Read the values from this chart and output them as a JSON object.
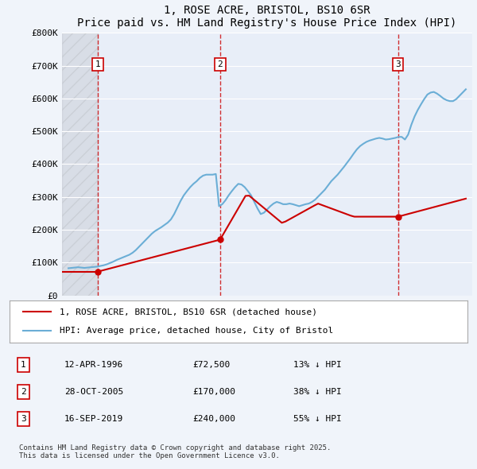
{
  "title": "1, ROSE ACRE, BRISTOL, BS10 6SR",
  "subtitle": "Price paid vs. HM Land Registry's House Price Index (HPI)",
  "ylabel": "",
  "xlabel": "",
  "ylim": [
    0,
    800000
  ],
  "yticks": [
    0,
    100000,
    200000,
    300000,
    400000,
    500000,
    600000,
    700000,
    800000
  ],
  "ytick_labels": [
    "£0",
    "£100K",
    "£200K",
    "£300K",
    "£400K",
    "£500K",
    "£600K",
    "£700K",
    "£800K"
  ],
  "background_color": "#f0f4fa",
  "plot_bg_color": "#e8eef8",
  "grid_color": "#ffffff",
  "hpi_color": "#6baed6",
  "price_color": "#cc0000",
  "sale_points": [
    {
      "year": 1996.28,
      "price": 72500,
      "label": "1"
    },
    {
      "year": 2005.83,
      "price": 170000,
      "label": "2"
    },
    {
      "year": 2019.71,
      "price": 240000,
      "label": "3"
    }
  ],
  "transactions": [
    {
      "num": "1",
      "date": "12-APR-1996",
      "price": "£72,500",
      "hpi": "13% ↓ HPI"
    },
    {
      "num": "2",
      "date": "28-OCT-2005",
      "price": "£170,000",
      "hpi": "38% ↓ HPI"
    },
    {
      "num": "3",
      "date": "16-SEP-2019",
      "price": "£240,000",
      "hpi": "55% ↓ HPI"
    }
  ],
  "legend_line1": "1, ROSE ACRE, BRISTOL, BS10 6SR (detached house)",
  "legend_line2": "HPI: Average price, detached house, City of Bristol",
  "footer": "Contains HM Land Registry data © Crown copyright and database right 2025.\nThis data is licensed under the Open Government Licence v3.0.",
  "hpi_data": {
    "years": [
      1994.0,
      1994.25,
      1994.5,
      1994.75,
      1995.0,
      1995.25,
      1995.5,
      1995.75,
      1996.0,
      1996.25,
      1996.5,
      1996.75,
      1997.0,
      1997.25,
      1997.5,
      1997.75,
      1998.0,
      1998.25,
      1998.5,
      1998.75,
      1999.0,
      1999.25,
      1999.5,
      1999.75,
      2000.0,
      2000.25,
      2000.5,
      2000.75,
      2001.0,
      2001.25,
      2001.5,
      2001.75,
      2002.0,
      2002.25,
      2002.5,
      2002.75,
      2003.0,
      2003.25,
      2003.5,
      2003.75,
      2004.0,
      2004.25,
      2004.5,
      2004.75,
      2005.0,
      2005.25,
      2005.5,
      2005.75,
      2006.0,
      2006.25,
      2006.5,
      2006.75,
      2007.0,
      2007.25,
      2007.5,
      2007.75,
      2008.0,
      2008.25,
      2008.5,
      2008.75,
      2009.0,
      2009.25,
      2009.5,
      2009.75,
      2010.0,
      2010.25,
      2010.5,
      2010.75,
      2011.0,
      2011.25,
      2011.5,
      2011.75,
      2012.0,
      2012.25,
      2012.5,
      2012.75,
      2013.0,
      2013.25,
      2013.5,
      2013.75,
      2014.0,
      2014.25,
      2014.5,
      2014.75,
      2015.0,
      2015.25,
      2015.5,
      2015.75,
      2016.0,
      2016.25,
      2016.5,
      2016.75,
      2017.0,
      2017.25,
      2017.5,
      2017.75,
      2018.0,
      2018.25,
      2018.5,
      2018.75,
      2019.0,
      2019.25,
      2019.5,
      2019.75,
      2020.0,
      2020.25,
      2020.5,
      2020.75,
      2021.0,
      2021.25,
      2021.5,
      2021.75,
      2022.0,
      2022.25,
      2022.5,
      2022.75,
      2023.0,
      2023.25,
      2023.5,
      2023.75,
      2024.0,
      2024.25,
      2024.5,
      2024.75,
      2025.0
    ],
    "values": [
      83000,
      84000,
      85000,
      86000,
      85000,
      84000,
      85000,
      86000,
      87000,
      88000,
      90000,
      92000,
      95000,
      99000,
      103000,
      108000,
      112000,
      116000,
      120000,
      124000,
      130000,
      138000,
      148000,
      158000,
      168000,
      178000,
      188000,
      196000,
      202000,
      208000,
      215000,
      222000,
      232000,
      248000,
      268000,
      288000,
      305000,
      318000,
      330000,
      340000,
      348000,
      358000,
      365000,
      368000,
      368000,
      368000,
      370000,
      272000,
      278000,
      290000,
      305000,
      318000,
      330000,
      340000,
      338000,
      330000,
      318000,
      305000,
      285000,
      265000,
      248000,
      252000,
      262000,
      272000,
      280000,
      285000,
      282000,
      278000,
      278000,
      280000,
      278000,
      275000,
      272000,
      275000,
      278000,
      280000,
      285000,
      292000,
      302000,
      312000,
      322000,
      335000,
      348000,
      358000,
      368000,
      380000,
      392000,
      405000,
      418000,
      432000,
      445000,
      455000,
      462000,
      468000,
      472000,
      475000,
      478000,
      480000,
      478000,
      475000,
      476000,
      478000,
      480000,
      483000,
      483000,
      475000,
      490000,
      520000,
      545000,
      565000,
      582000,
      598000,
      612000,
      618000,
      620000,
      615000,
      608000,
      600000,
      595000,
      592000,
      592000,
      598000,
      608000,
      618000,
      628000
    ]
  },
  "price_data": {
    "years": [
      1994.0,
      1996.0,
      1996.28,
      2005.83,
      2019.71,
      2024.0,
      2025.0
    ],
    "values": [
      75000,
      72000,
      72500,
      170000,
      240000,
      295000,
      290000
    ]
  }
}
